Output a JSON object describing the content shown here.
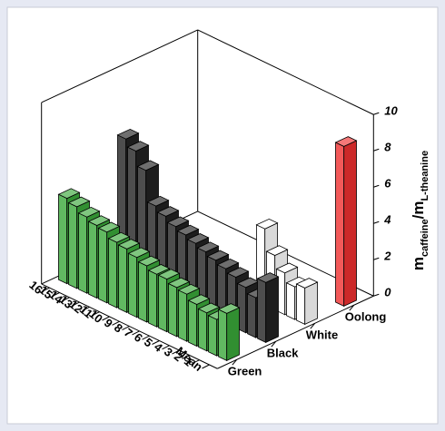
{
  "chart_data": {
    "type": "bar3d",
    "categories": [
      "Mean",
      "1",
      "2",
      "3",
      "4",
      "5",
      "6",
      "7",
      "8",
      "9",
      "10",
      "11",
      "12",
      "13",
      "14",
      "15",
      "16"
    ],
    "series": [
      {
        "name": "Green",
        "color": "#3aa83a",
        "values": [
          2.6,
          2.0,
          2.1,
          2.3,
          2.6,
          2.7,
          2.9,
          2.9,
          3.1,
          3.3,
          3.5,
          3.6,
          3.9,
          4.0,
          4.2,
          4.5,
          4.7
        ]
      },
      {
        "name": "Black",
        "color": "#222222",
        "values": [
          3.3,
          2.2,
          2.5,
          2.8,
          3.0,
          3.2,
          3.4,
          3.6,
          3.8,
          4.0,
          4.3,
          4.6,
          6.3,
          7.1,
          7.5,
          null,
          null
        ]
      },
      {
        "name": "White",
        "color": "#ffffff",
        "values": [
          2.0,
          1.8,
          2.3,
          3.0,
          4.2,
          null,
          null,
          null,
          null,
          null,
          null,
          null,
          null,
          null,
          null,
          null,
          null
        ]
      },
      {
        "name": "Oolong",
        "color": "#f03030",
        "values": [
          8.8,
          null,
          null,
          null,
          null,
          null,
          null,
          null,
          null,
          null,
          null,
          null,
          null,
          null,
          null,
          null,
          null
        ]
      }
    ],
    "zlim": [
      0,
      10
    ],
    "zticks": [
      0,
      2,
      4,
      6,
      8,
      10
    ],
    "zlabel": [
      "m",
      "caffeine",
      "/m",
      "L-theanine"
    ]
  }
}
